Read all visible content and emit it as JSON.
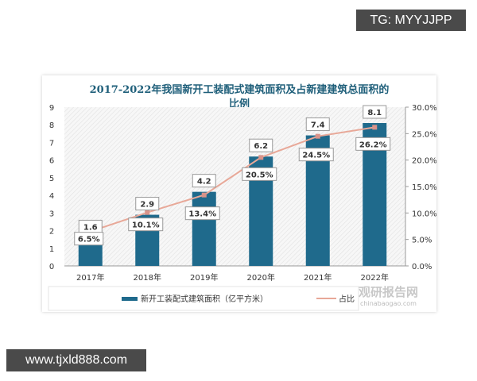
{
  "watermarks": {
    "top_right": "TG: MYYJJPP",
    "bottom_left": "www.tjxld888.com",
    "logo_cn": "观研报告网",
    "logo_en": "chinabaogao.com"
  },
  "colors": {
    "bar": "#1f6a8c",
    "line": "#e8a898",
    "title": "#1f5f7a",
    "marker": "#d9938a"
  },
  "chart_data": {
    "type": "bar",
    "title_line1": "2017-2022年我国新开工装配式建筑面积及占新建建筑总面积的",
    "title_line2": "比例",
    "categories": [
      "2017年",
      "2018年",
      "2019年",
      "2020年",
      "2021年",
      "2022年"
    ],
    "series": [
      {
        "name": "新开工装配式建筑面积（亿平方米）",
        "type": "bar",
        "axis": "left",
        "values": [
          1.6,
          2.9,
          4.2,
          6.2,
          7.4,
          8.1
        ],
        "labels": [
          "1.6",
          "2.9",
          "4.2",
          "6.2",
          "7.4",
          "8.1"
        ]
      },
      {
        "name": "占比",
        "type": "line",
        "axis": "right",
        "values": [
          6.5,
          10.1,
          13.4,
          20.5,
          24.5,
          26.2
        ],
        "labels": [
          "6.5%",
          "10.1%",
          "13.4%",
          "20.5%",
          "24.5%",
          "26.2%"
        ]
      }
    ],
    "ylim_left": [
      0,
      9
    ],
    "yticks_left": [
      "0",
      "1",
      "2",
      "3",
      "4",
      "5",
      "6",
      "7",
      "8",
      "9"
    ],
    "ylim_right": [
      0,
      30
    ],
    "yticks_right": [
      "0.0%",
      "5.0%",
      "10.0%",
      "15.0%",
      "20.0%",
      "25.0%",
      "30.0%"
    ],
    "legend_position": "bottom"
  }
}
